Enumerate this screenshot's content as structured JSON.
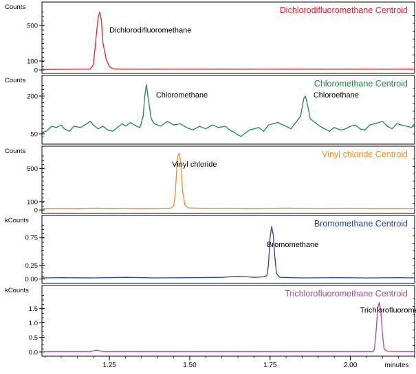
{
  "chart_data": {
    "type": "line",
    "xlabel": "minutes",
    "x_ticks": [
      1.25,
      1.5,
      1.75,
      2.0
    ],
    "x_tick_labels": [
      "1.25",
      "1.50",
      "1.75",
      "2.00"
    ],
    "xlim": [
      1.04,
      2.2
    ],
    "panels": [
      {
        "unit_label": "Counts",
        "title": "Dichlorodifluoromethane Centroid",
        "color": "#e8212d",
        "ylim": [
          -8,
          700
        ],
        "yticks": [
          0,
          100,
          500
        ],
        "ytick_labels": [
          "0",
          "100",
          "500"
        ],
        "annotations": [
          {
            "text": "Dichlorodifluoromethane",
            "x": 1.25,
            "y": 420
          }
        ],
        "series": {
          "name": "Dichlorodifluoromethane",
          "points": [
            [
              1.04,
              6
            ],
            [
              1.1,
              7
            ],
            [
              1.15,
              8
            ],
            [
              1.19,
              10
            ],
            [
              1.2,
              60
            ],
            [
              1.21,
              420
            ],
            [
              1.215,
              590
            ],
            [
              1.22,
              650
            ],
            [
              1.225,
              560
            ],
            [
              1.23,
              300
            ],
            [
              1.24,
              120
            ],
            [
              1.25,
              40
            ],
            [
              1.26,
              14
            ],
            [
              1.3,
              9
            ],
            [
              1.4,
              10
            ],
            [
              1.5,
              9
            ],
            [
              1.6,
              10
            ],
            [
              1.7,
              9
            ],
            [
              1.8,
              10
            ],
            [
              1.9,
              9
            ],
            [
              2.0,
              10
            ],
            [
              2.1,
              9
            ],
            [
              2.2,
              10
            ]
          ]
        }
      },
      {
        "unit_label": "Counts",
        "title": "Chloromethane Centroid",
        "color": "#1a8a3f",
        "ylim": [
          20,
          260
        ],
        "yticks": [
          50,
          200
        ],
        "ytick_labels": [
          "50",
          "200"
        ],
        "annotations": [
          {
            "text": "Chloromethane",
            "x": 1.395,
            "y": 195
          },
          {
            "text": "Chloroethane",
            "x": 1.885,
            "y": 195
          }
        ],
        "series": {
          "name": "Chloromethane",
          "points": [
            [
              1.04,
              55
            ],
            [
              1.055,
              62
            ],
            [
              1.07,
              80
            ],
            [
              1.085,
              75
            ],
            [
              1.1,
              85
            ],
            [
              1.11,
              70
            ],
            [
              1.125,
              60
            ],
            [
              1.14,
              80
            ],
            [
              1.16,
              75
            ],
            [
              1.18,
              90
            ],
            [
              1.19,
              100
            ],
            [
              1.2,
              85
            ],
            [
              1.215,
              70
            ],
            [
              1.23,
              80
            ],
            [
              1.245,
              65
            ],
            [
              1.26,
              60
            ],
            [
              1.275,
              75
            ],
            [
              1.29,
              90
            ],
            [
              1.3,
              80
            ],
            [
              1.315,
              95
            ],
            [
              1.335,
              80
            ],
            [
              1.345,
              75
            ],
            [
              1.355,
              120
            ],
            [
              1.36,
              200
            ],
            [
              1.365,
              245
            ],
            [
              1.372,
              180
            ],
            [
              1.38,
              110
            ],
            [
              1.39,
              90
            ],
            [
              1.41,
              80
            ],
            [
              1.43,
              100
            ],
            [
              1.45,
              85
            ],
            [
              1.47,
              90
            ],
            [
              1.49,
              75
            ],
            [
              1.51,
              65
            ],
            [
              1.53,
              80
            ],
            [
              1.55,
              70
            ],
            [
              1.57,
              85
            ],
            [
              1.59,
              75
            ],
            [
              1.61,
              80
            ],
            [
              1.625,
              65
            ],
            [
              1.64,
              55
            ],
            [
              1.65,
              45
            ],
            [
              1.66,
              40
            ],
            [
              1.67,
              50
            ],
            [
              1.685,
              65
            ],
            [
              1.7,
              70
            ],
            [
              1.715,
              75
            ],
            [
              1.73,
              60
            ],
            [
              1.745,
              85
            ],
            [
              1.76,
              90
            ],
            [
              1.775,
              95
            ],
            [
              1.79,
              85
            ],
            [
              1.8,
              80
            ],
            [
              1.815,
              70
            ],
            [
              1.83,
              95
            ],
            [
              1.845,
              120
            ],
            [
              1.855,
              190
            ],
            [
              1.86,
              200
            ],
            [
              1.866,
              170
            ],
            [
              1.875,
              110
            ],
            [
              1.89,
              95
            ],
            [
              1.905,
              80
            ],
            [
              1.92,
              70
            ],
            [
              1.935,
              60
            ],
            [
              1.95,
              75
            ],
            [
              1.97,
              65
            ],
            [
              1.985,
              70
            ],
            [
              2.0,
              80
            ],
            [
              2.015,
              85
            ],
            [
              2.03,
              70
            ],
            [
              2.045,
              65
            ],
            [
              2.06,
              85
            ],
            [
              2.075,
              90
            ],
            [
              2.09,
              95
            ],
            [
              2.1,
              100
            ],
            [
              2.115,
              80
            ],
            [
              2.13,
              70
            ],
            [
              2.145,
              90
            ],
            [
              2.16,
              85
            ],
            [
              2.175,
              80
            ],
            [
              2.19,
              75
            ],
            [
              2.2,
              90
            ]
          ]
        }
      },
      {
        "unit_label": "Counts",
        "title": "Vinyl chloride Centroid",
        "color": "#f28c28",
        "ylim": [
          -8,
          700
        ],
        "yticks": [
          0,
          100,
          500
        ],
        "ytick_labels": [
          "0",
          "100",
          "500"
        ],
        "annotations": [
          {
            "text": "Vinyl chloride",
            "x": 1.445,
            "y": 520
          }
        ],
        "series": {
          "name": "Vinyl chloride",
          "points": [
            [
              1.04,
              18
            ],
            [
              1.1,
              20
            ],
            [
              1.15,
              18
            ],
            [
              1.2,
              22
            ],
            [
              1.25,
              19
            ],
            [
              1.3,
              21
            ],
            [
              1.35,
              18
            ],
            [
              1.4,
              20
            ],
            [
              1.44,
              22
            ],
            [
              1.45,
              50
            ],
            [
              1.455,
              200
            ],
            [
              1.46,
              520
            ],
            [
              1.463,
              650
            ],
            [
              1.468,
              680
            ],
            [
              1.472,
              560
            ],
            [
              1.478,
              220
            ],
            [
              1.485,
              60
            ],
            [
              1.495,
              25
            ],
            [
              1.55,
              20
            ],
            [
              1.6,
              21
            ],
            [
              1.7,
              19
            ],
            [
              1.8,
              22
            ],
            [
              1.9,
              20
            ],
            [
              2.0,
              21
            ],
            [
              2.1,
              19
            ],
            [
              2.2,
              20
            ]
          ]
        }
      },
      {
        "unit_label": "kCounts",
        "title": "Bromomethane Centroid",
        "color": "#24419a",
        "ylim": [
          -0.03,
          1.05
        ],
        "yticks": [
          0.0,
          0.25,
          0.75
        ],
        "ytick_labels": [
          "0.00",
          "0.25",
          "0.75"
        ],
        "annotations": [
          {
            "text": "Bromomethane",
            "x": 1.74,
            "y": 0.58
          }
        ],
        "series": {
          "name": "Bromomethane",
          "points": [
            [
              1.04,
              0.02
            ],
            [
              1.1,
              0.025
            ],
            [
              1.2,
              0.02
            ],
            [
              1.3,
              0.03
            ],
            [
              1.4,
              0.02
            ],
            [
              1.5,
              0.025
            ],
            [
              1.6,
              0.03
            ],
            [
              1.65,
              0.05
            ],
            [
              1.68,
              0.04
            ],
            [
              1.7,
              0.03
            ],
            [
              1.73,
              0.04
            ],
            [
              1.74,
              0.06
            ],
            [
              1.745,
              0.25
            ],
            [
              1.75,
              0.75
            ],
            [
              1.755,
              0.95
            ],
            [
              1.76,
              0.8
            ],
            [
              1.765,
              0.4
            ],
            [
              1.77,
              0.1
            ],
            [
              1.78,
              0.03
            ],
            [
              1.85,
              0.02
            ],
            [
              1.95,
              0.025
            ],
            [
              2.05,
              0.02
            ],
            [
              2.15,
              0.025
            ],
            [
              2.2,
              0.02
            ]
          ]
        }
      },
      {
        "unit_label": "kCounts",
        "title": "Trichlorofluoromethane Centroid",
        "color": "#b0449a",
        "ylim": [
          -0.05,
          2.1
        ],
        "yticks": [
          0.0,
          0.5,
          1.0,
          1.5
        ],
        "ytick_labels": [
          "0.0",
          "0.5",
          "1.0",
          "1.5"
        ],
        "annotations": [
          {
            "text": "Trichlorofluoromethane",
            "x": 2.03,
            "y": 1.35
          }
        ],
        "series": {
          "name": "Trichlorofluoromethane",
          "points": [
            [
              1.04,
              0.01
            ],
            [
              1.15,
              0.01
            ],
            [
              1.19,
              0.01
            ],
            [
              1.2,
              0.04
            ],
            [
              1.21,
              0.06
            ],
            [
              1.22,
              0.04
            ],
            [
              1.23,
              0.01
            ],
            [
              1.4,
              0.01
            ],
            [
              1.6,
              0.01
            ],
            [
              1.8,
              0.01
            ],
            [
              2.0,
              0.01
            ],
            [
              2.07,
              0.01
            ],
            [
              2.075,
              0.1
            ],
            [
              2.08,
              0.7
            ],
            [
              2.085,
              1.5
            ],
            [
              2.09,
              1.7
            ],
            [
              2.095,
              1.4
            ],
            [
              2.1,
              0.6
            ],
            [
              2.105,
              0.1
            ],
            [
              2.115,
              0.02
            ],
            [
              2.2,
              0.01
            ]
          ]
        }
      }
    ]
  }
}
